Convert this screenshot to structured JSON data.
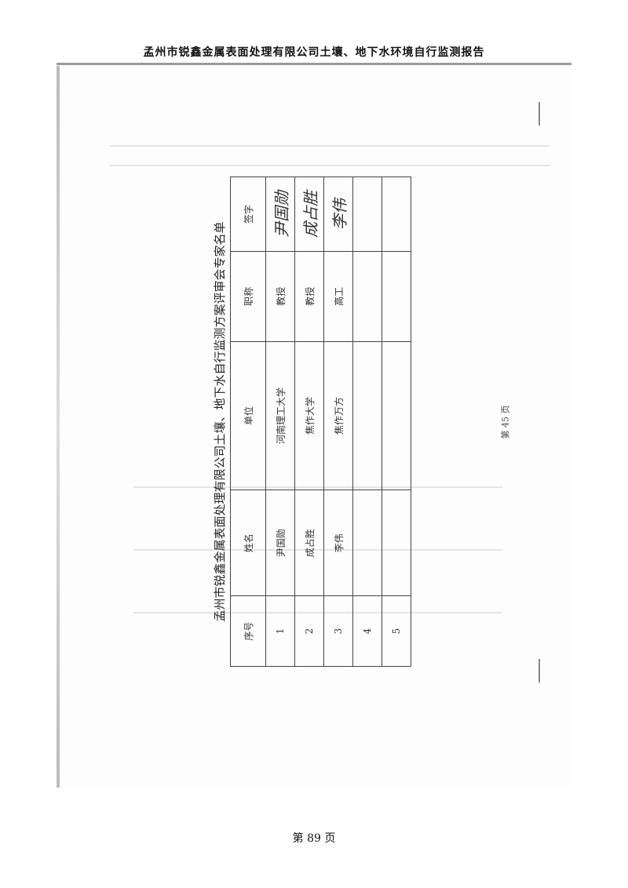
{
  "header": {
    "title": "孟州市锐鑫金属表面处理有限公司土壤、地下水环境自行监测报告"
  },
  "table": {
    "title": "孟州市锐鑫金属表面处理有限公司土壤、地下水自行监测方案评审会专家名单",
    "columns": [
      "序号",
      "姓名",
      "单位",
      "职称",
      "签字"
    ],
    "rows": [
      {
        "no": "1",
        "name": "尹国勋",
        "unit": "河南理工大学",
        "title": "教授",
        "signature": "尹国勋"
      },
      {
        "no": "2",
        "name": "成占胜",
        "unit": "焦作大学",
        "title": "教授",
        "signature": "成占胜"
      },
      {
        "no": "3",
        "name": "李伟",
        "unit": "焦作万方",
        "title": "高工",
        "signature": "李伟"
      },
      {
        "no": "4",
        "name": "",
        "unit": "",
        "title": "",
        "signature": ""
      },
      {
        "no": "5",
        "name": "",
        "unit": "",
        "title": "",
        "signature": ""
      }
    ]
  },
  "inner_page": "第 45 页",
  "footer": {
    "page": "第 89 页"
  }
}
